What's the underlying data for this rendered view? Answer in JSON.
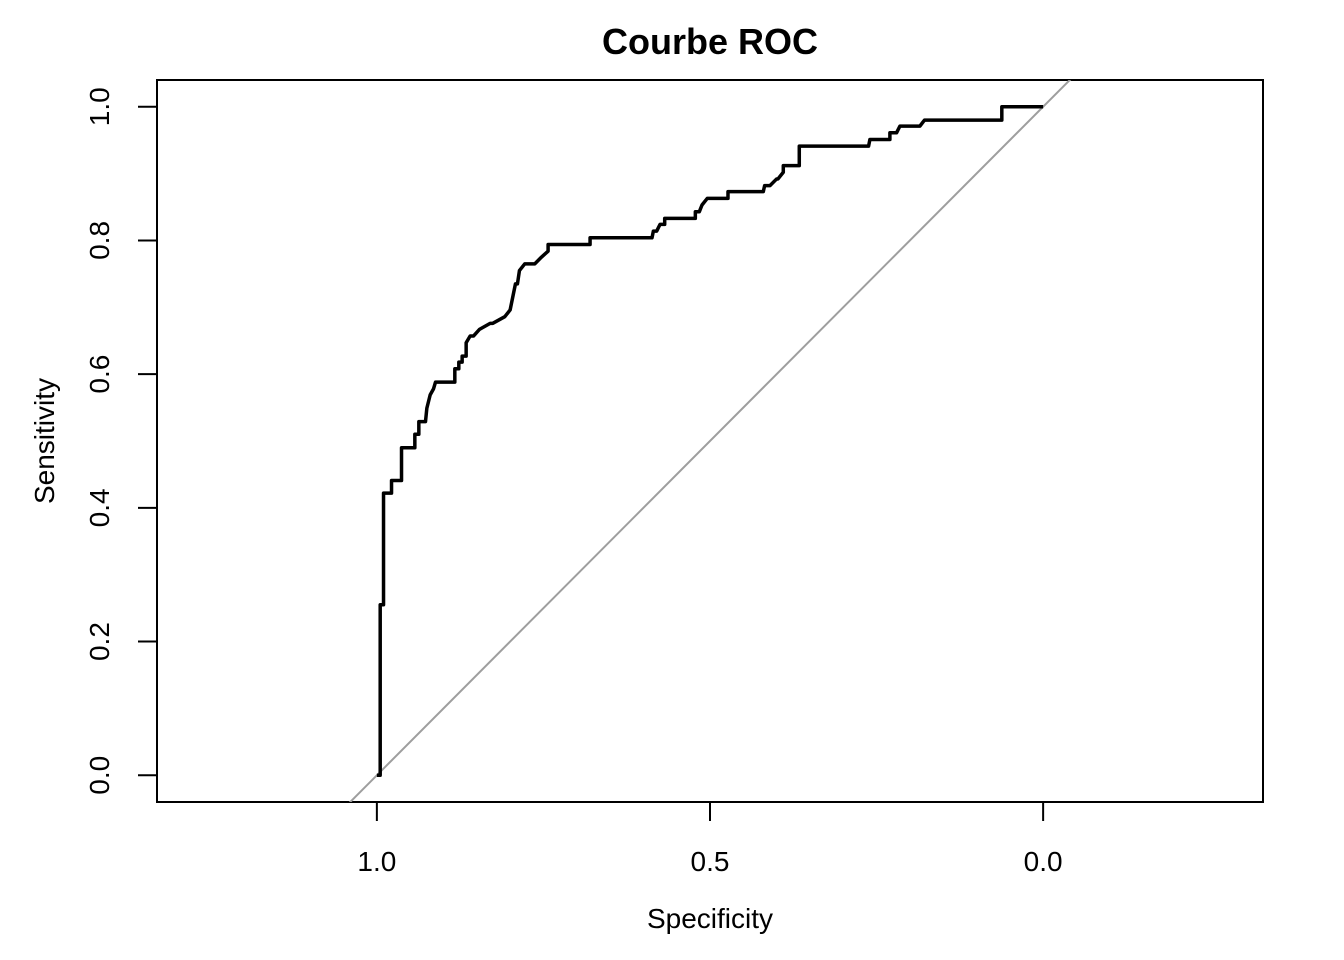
{
  "chart_data": {
    "type": "line",
    "title": "Courbe ROC",
    "xlabel": "Specificity",
    "ylabel": "Sensitivity",
    "x_reversed": true,
    "xlim": [
      1.33,
      -0.33
    ],
    "ylim": [
      -0.04,
      1.04
    ],
    "x_ticks": [
      1.0,
      0.5,
      0.0
    ],
    "x_tick_labels": [
      "1.0",
      "0.5",
      "0.0"
    ],
    "y_ticks": [
      0.0,
      0.2,
      0.4,
      0.6,
      0.8,
      1.0
    ],
    "y_tick_labels": [
      "0.0",
      "0.2",
      "0.4",
      "0.6",
      "0.8",
      "1.0"
    ],
    "grid": false,
    "colors": {
      "roc": "#000000",
      "diagonal": "#9e9e9e"
    },
    "series": [
      {
        "specificity": [
          1.0,
          0.995,
          0.995,
          0.99,
          0.99,
          0.978,
          0.978,
          0.963,
          0.963,
          0.943,
          0.943,
          0.937,
          0.937,
          0.927,
          0.925,
          0.92,
          0.915,
          0.912,
          0.905,
          0.883,
          0.883,
          0.877,
          0.877,
          0.872,
          0.872,
          0.866,
          0.866,
          0.86,
          0.855,
          0.846,
          0.846,
          0.83,
          0.826,
          0.826,
          0.808,
          0.808,
          0.8,
          0.8,
          0.792,
          0.789,
          0.786,
          0.778,
          0.763,
          0.763,
          0.753,
          0.753,
          0.743,
          0.743,
          0.68,
          0.68,
          0.587,
          0.585,
          0.58,
          0.575,
          0.568,
          0.568,
          0.522,
          0.522,
          0.516,
          0.512,
          0.504,
          0.478,
          0.473,
          0.473,
          0.42,
          0.418,
          0.41,
          0.4,
          0.398,
          0.39,
          0.39,
          0.366,
          0.366,
          0.262,
          0.26,
          0.23,
          0.23,
          0.22,
          0.215,
          0.205,
          0.185,
          0.178,
          0.178,
          0.062,
          0.062,
          0.0
        ],
        "sensitivity": [
          0.0,
          0.0,
          0.255,
          0.255,
          0.422,
          0.422,
          0.441,
          0.441,
          0.49,
          0.49,
          0.51,
          0.51,
          0.529,
          0.529,
          0.549,
          0.569,
          0.578,
          0.588,
          0.588,
          0.588,
          0.608,
          0.608,
          0.618,
          0.618,
          0.627,
          0.627,
          0.647,
          0.657,
          0.657,
          0.667,
          0.667,
          0.676,
          0.676,
          0.676,
          0.686,
          0.686,
          0.696,
          0.696,
          0.735,
          0.735,
          0.755,
          0.765,
          0.765,
          0.765,
          0.775,
          0.775,
          0.784,
          0.794,
          0.794,
          0.804,
          0.804,
          0.814,
          0.814,
          0.824,
          0.824,
          0.833,
          0.833,
          0.843,
          0.843,
          0.853,
          0.863,
          0.863,
          0.863,
          0.873,
          0.873,
          0.882,
          0.882,
          0.892,
          0.892,
          0.902,
          0.912,
          0.912,
          0.941,
          0.941,
          0.951,
          0.951,
          0.961,
          0.961,
          0.971,
          0.971,
          0.971,
          0.98,
          0.98,
          0.98,
          1.0,
          1.0
        ]
      }
    ],
    "reference_line": {
      "type": "diagonal",
      "from": [
        1.0,
        0.0
      ],
      "to": [
        0.0,
        1.0
      ]
    }
  }
}
